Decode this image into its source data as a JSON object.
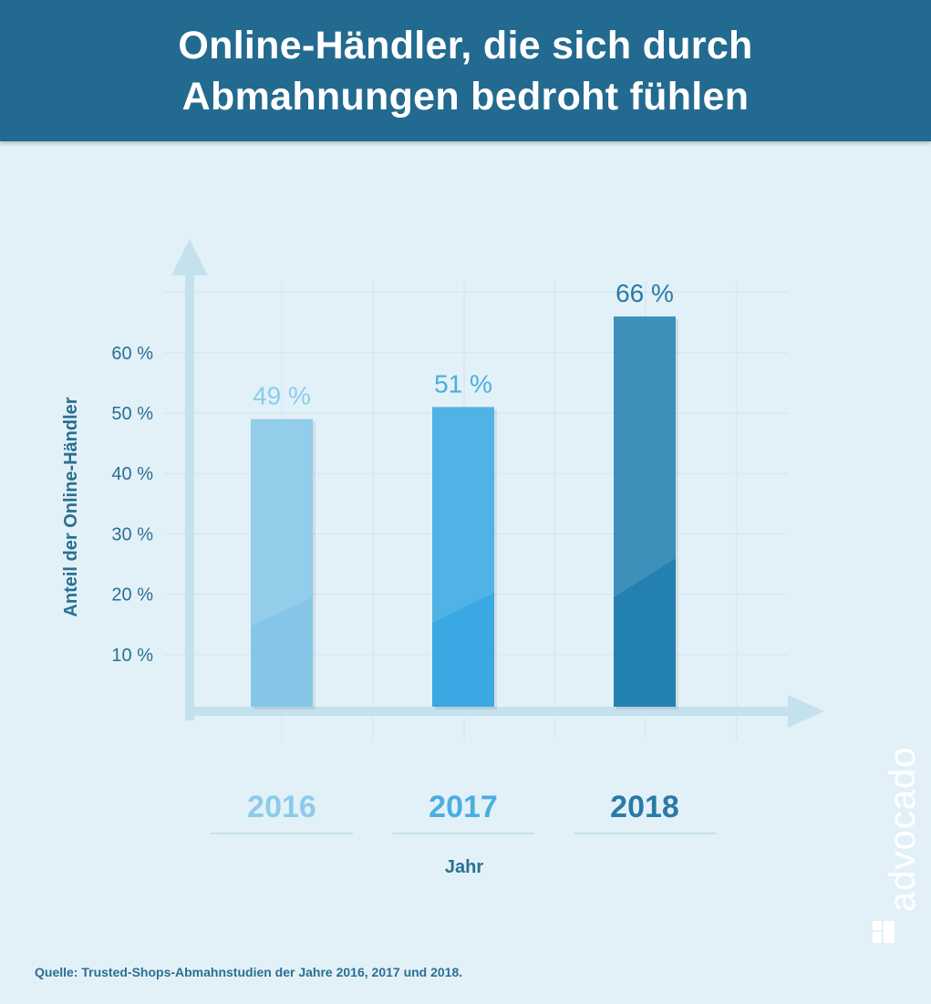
{
  "header": {
    "title_line1": "Online-Händler, die sich durch",
    "title_line2": "Abmahnungen bedroht fühlen"
  },
  "chart_data": {
    "type": "bar",
    "categories": [
      "2016",
      "2017",
      "2018"
    ],
    "values": [
      49,
      51,
      66
    ],
    "data_labels": [
      "49 %",
      "51 %",
      "66 %"
    ],
    "ylabel": "Anteil der Online-Händler",
    "xlabel": "Jahr",
    "yticks": [
      10,
      20,
      30,
      40,
      50,
      60
    ],
    "ytick_labels": [
      "10 %",
      "20 %",
      "30 %",
      "40 %",
      "50 %",
      "60 %"
    ],
    "ylim": [
      0,
      70
    ],
    "grid": true,
    "colors": [
      "#85c6e8",
      "#3aa8e2",
      "#2480b0"
    ],
    "label_colors": [
      "#8ccbea",
      "#4aaee2",
      "#2a7aa8"
    ],
    "axis_color": "#c4e1ee",
    "tick_color": "#2a6f92"
  },
  "footer": {
    "source": "Quelle: Trusted-Shops-Abmahnstudien der Jahre 2016, 2017 und 2018."
  },
  "brand": {
    "logo_text": "advocado"
  }
}
